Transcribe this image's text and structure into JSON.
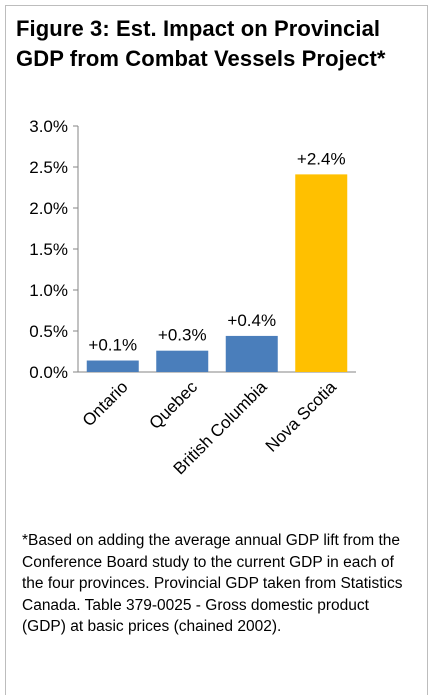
{
  "title": "Figure 3: Est. Impact on Provincial\nGDP from Combat Vessels Project*",
  "chart_data": {
    "type": "bar",
    "categories": [
      "Ontario",
      "Quebec",
      "British Columbia",
      "Nova Scotia"
    ],
    "values": [
      0.14,
      0.26,
      0.44,
      2.41
    ],
    "data_labels": [
      "+0.1%",
      "+0.3%",
      "+0.4%",
      "+2.4%"
    ],
    "bar_colors": [
      "#4a7ebb",
      "#4a7ebb",
      "#4a7ebb",
      "#ffc000"
    ],
    "yticks": [
      "0.0%",
      "0.5%",
      "1.0%",
      "1.5%",
      "2.0%",
      "2.5%",
      "3.0%"
    ],
    "ylim": [
      0,
      3
    ],
    "grid": false,
    "legend": "none",
    "xlabel": "",
    "ylabel": ""
  },
  "footnote": "*Based on adding the average annual GDP lift from the Conference Board study to the current GDP in each of the four provinces.    Provincial GDP taken from Statistics Canada. Table 379-0025 - Gross domestic product (GDP) at basic prices (chained 2002)."
}
